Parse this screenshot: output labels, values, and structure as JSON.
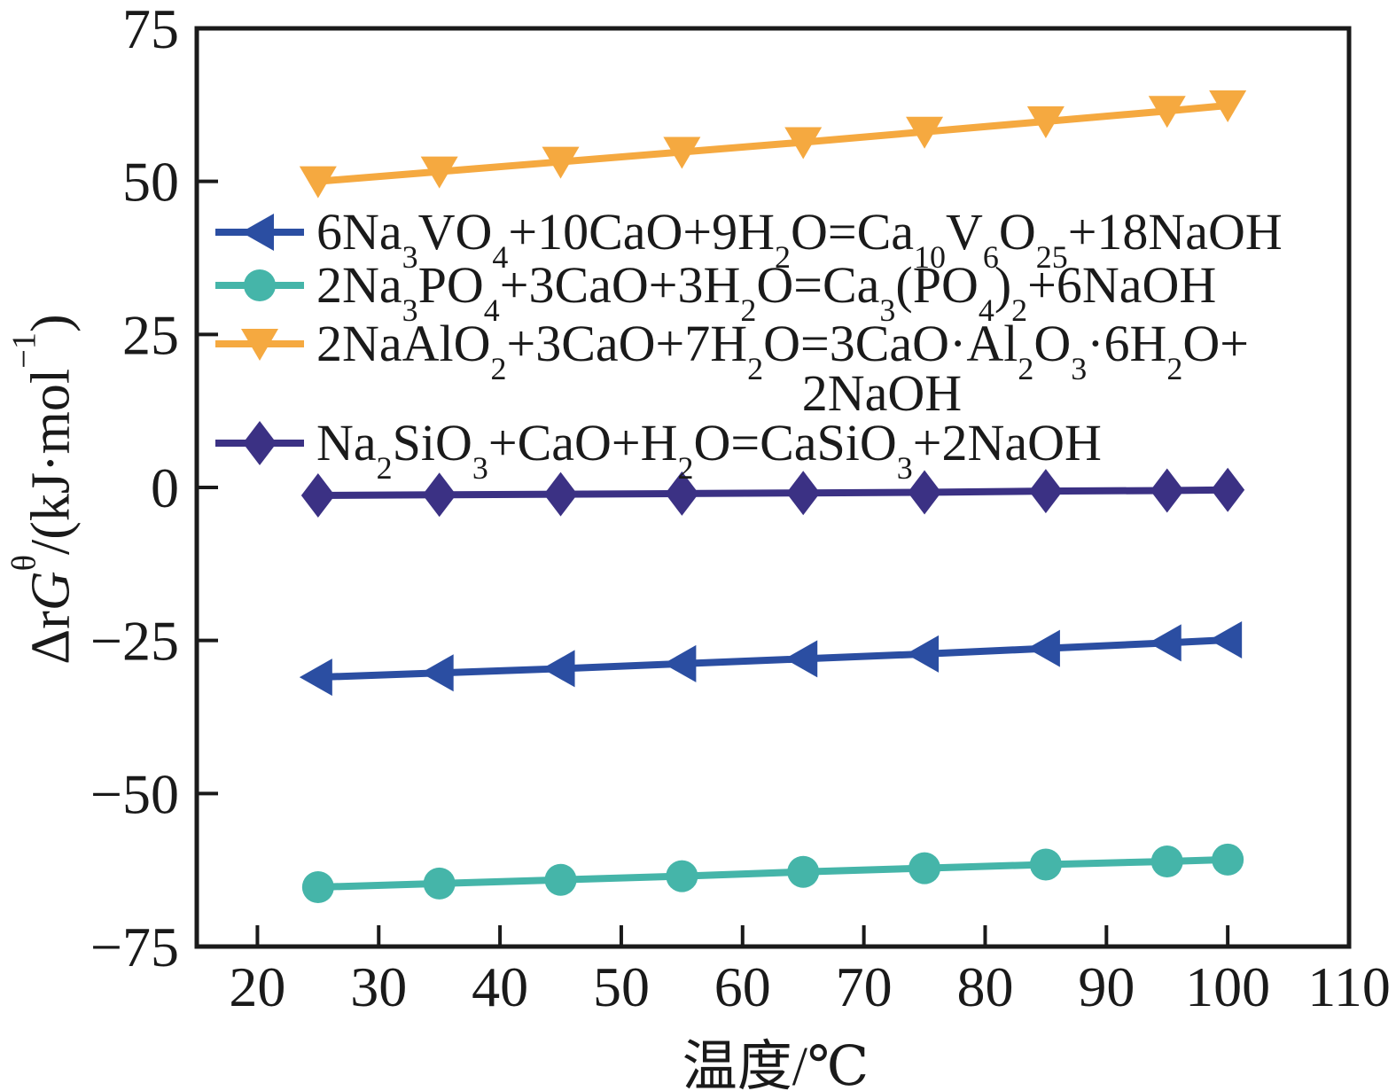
{
  "chart_data": {
    "type": "line",
    "title": "",
    "xlabel": "温度/℃",
    "ylabel": "ΔrGθ/(kJ·mol−1)",
    "ylabel_rich": "Δr*G*^θ^/(kJ·mol^−1^)",
    "xlim": [
      15,
      110
    ],
    "ylim": [
      -75,
      75
    ],
    "x_ticks": [
      20,
      30,
      40,
      50,
      60,
      70,
      80,
      90,
      100,
      110
    ],
    "y_ticks": [
      -75,
      -50,
      -25,
      0,
      25,
      50,
      75
    ],
    "grid": false,
    "legend_position": "upper left inside plot area",
    "axis_color": "#1a1a1a",
    "background": "#ffffff",
    "x": [
      25,
      35,
      45,
      55,
      65,
      75,
      85,
      95,
      100
    ],
    "series": [
      {
        "name": "6Na3VO4+10CaO+9H2O=Ca10V6O25+18NaOH",
        "label_rich": "6Na~3~VO~4~+10CaO+9H~2~O=Ca~10~V~6~O~25~+18NaOH",
        "marker": "triangle-left",
        "color": "#2B4EA2",
        "values": [
          -31.0,
          -30.3,
          -29.6,
          -28.8,
          -28.0,
          -27.2,
          -26.3,
          -25.4,
          -24.9
        ]
      },
      {
        "name": "2Na3PO4+3CaO+3H2O=Ca3(PO4)2+6NaOH",
        "label_rich": "2Na~3~PO~4~+3CaO+3H~2~O=Ca~3~(PO~4~)~2~+6NaOH",
        "marker": "circle",
        "color": "#45B5A9",
        "values": [
          -65.3,
          -64.7,
          -64.1,
          -63.5,
          -62.8,
          -62.2,
          -61.6,
          -61.1,
          -60.8
        ]
      },
      {
        "name": "2NaAlO2+3CaO+7H2O=3CaO·Al2O3·6H2O+2NaOH",
        "label_rich": "2NaAlO~2~+3CaO+7H~2~O=3CaO·Al~2~O~3~·6H~2~O+",
        "label_rich_line2": "2NaOH",
        "marker": "triangle-down",
        "color": "#F5A940",
        "values": [
          50.0,
          51.6,
          53.2,
          54.8,
          56.4,
          58.1,
          59.8,
          61.5,
          62.4
        ]
      },
      {
        "name": "Na2SiO3+CaO+H2O=CaSiO3+2NaOH",
        "label_rich": "Na~2~SiO~3~+CaO+H~2~O=CaSiO~3~+2NaOH",
        "marker": "diamond",
        "color": "#3B3184",
        "values": [
          -1.3,
          -1.2,
          -1.1,
          -1.0,
          -0.9,
          -0.8,
          -0.6,
          -0.5,
          -0.4
        ]
      }
    ]
  }
}
